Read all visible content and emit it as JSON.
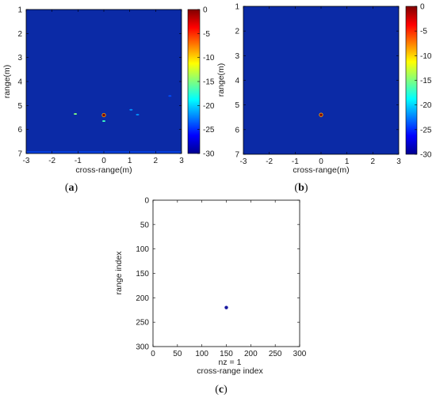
{
  "figure": {
    "panel_labels": {
      "a": {
        "open": "(",
        "letter": "a",
        "close": ")"
      },
      "b": {
        "open": "(",
        "letter": "b",
        "close": ")"
      },
      "c": {
        "open": "(",
        "letter": "c",
        "close": ")"
      }
    }
  },
  "chart_data": [
    {
      "id": "a",
      "type": "heatmap",
      "xlabel": "cross-range(m)",
      "ylabel": "range(m)",
      "xlim": [
        -3,
        3
      ],
      "ylim": [
        1,
        7
      ],
      "y_reversed": true,
      "xticks": [
        "-3",
        "-2",
        "-1",
        "0",
        "1",
        "2",
        "3"
      ],
      "yticks": [
        "1",
        "2",
        "3",
        "4",
        "5",
        "6",
        "7"
      ],
      "background_db": -30,
      "colorbar": {
        "range": [
          -30,
          0
        ],
        "ticks": [
          "0",
          "-5",
          "-10",
          "-15",
          "-20",
          "-25",
          "-30"
        ],
        "colormap": "jet"
      },
      "points": [
        {
          "x": 0.0,
          "y": 5.4,
          "db": 0
        },
        {
          "x": 0.0,
          "y": 5.65,
          "db": -17
        },
        {
          "x": -1.1,
          "y": 5.35,
          "db": -15
        },
        {
          "x": 1.05,
          "y": 5.18,
          "db": -22
        },
        {
          "x": 1.3,
          "y": 5.38,
          "db": -22
        },
        {
          "x": 2.55,
          "y": 4.6,
          "db": -24
        }
      ],
      "bottom_band_db": -24
    },
    {
      "id": "b",
      "type": "heatmap",
      "xlabel": "cross-range(m)",
      "ylabel": "range(m)",
      "xlim": [
        -3,
        3
      ],
      "ylim": [
        1,
        7
      ],
      "y_reversed": true,
      "xticks": [
        "-3",
        "-2",
        "-1",
        "0",
        "1",
        "2",
        "3"
      ],
      "yticks": [
        "1",
        "2",
        "3",
        "4",
        "5",
        "6",
        "7"
      ],
      "background_db": -30,
      "colorbar": {
        "range": [
          -30,
          0
        ],
        "ticks": [
          "0",
          "-5",
          "-10",
          "-15",
          "-20",
          "-25",
          "-30"
        ],
        "colormap": "jet"
      },
      "points": [
        {
          "x": 0.0,
          "y": 5.4,
          "db": 0
        }
      ]
    },
    {
      "id": "c",
      "type": "scatter",
      "xlabel": "cross-range index",
      "ylabel": "range index",
      "annotation": "nz = 1",
      "xlim": [
        0,
        300
      ],
      "ylim": [
        0,
        300
      ],
      "y_reversed": true,
      "xticks": [
        "0",
        "50",
        "100",
        "150",
        "200",
        "250",
        "300"
      ],
      "yticks": [
        "0",
        "50",
        "100",
        "150",
        "200",
        "250",
        "300"
      ],
      "points": [
        {
          "x": 150,
          "y": 220
        }
      ],
      "marker_color": "#1a1aa0"
    }
  ]
}
